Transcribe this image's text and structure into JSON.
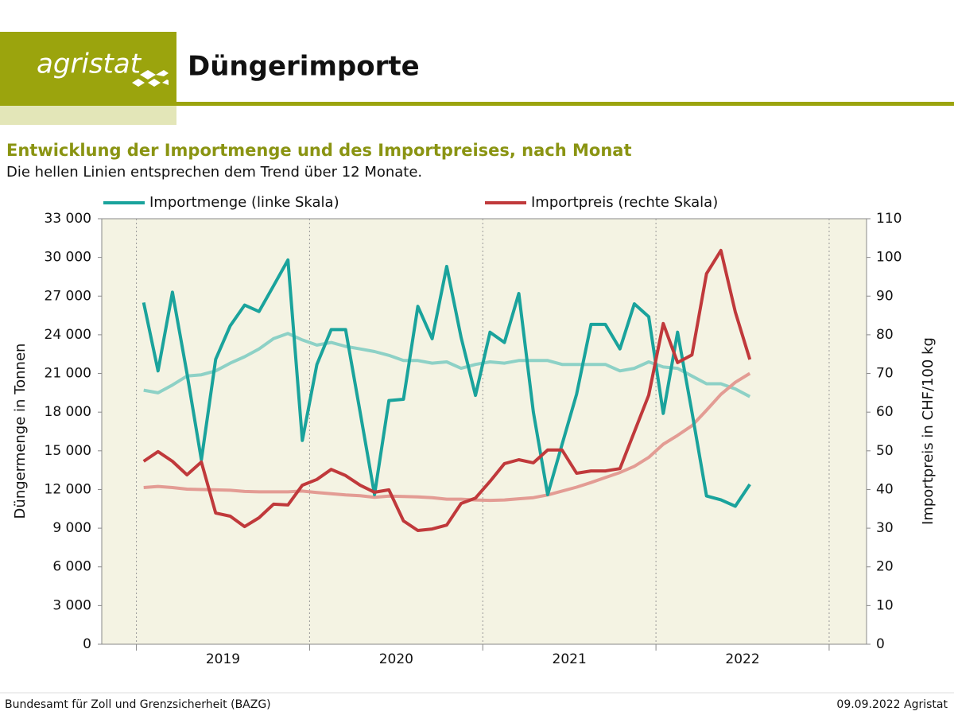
{
  "header": {
    "logo": "agristat",
    "title": "Düngerimporte"
  },
  "footer": {
    "source": "Bundesamt für Zoll und Grenzsicherheit (BAZG)",
    "date": "09.09.2022 Agristat"
  },
  "chart_data": {
    "type": "line",
    "title": "Entwicklung der Importmenge und des Importpreises, nach Monat",
    "subtitle": "Die hellen Linien entsprechen dem Trend über 12 Monate.",
    "ylabel": "Düngermenge in Tonnen",
    "y2label": "Importpreis  in CHF/100 kg",
    "x": [
      2019.042,
      2019.125,
      2019.208,
      2019.292,
      2019.375,
      2019.458,
      2019.542,
      2019.625,
      2019.708,
      2019.792,
      2019.875,
      2019.958,
      2020.042,
      2020.125,
      2020.208,
      2020.292,
      2020.375,
      2020.458,
      2020.542,
      2020.625,
      2020.708,
      2020.792,
      2020.875,
      2020.958,
      2021.042,
      2021.125,
      2021.208,
      2021.292,
      2021.375,
      2021.458,
      2021.542,
      2021.625,
      2021.708,
      2021.792,
      2021.875,
      2021.958,
      2022.042,
      2022.125,
      2022.208,
      2022.292,
      2022.375,
      2022.458,
      2022.542
    ],
    "xlim": [
      2018.8,
      2023.216
    ],
    "xticks": [
      {
        "value": 2019.5,
        "label": "2019"
      },
      {
        "value": 2020.5,
        "label": "2020"
      },
      {
        "value": 2021.5,
        "label": "2021"
      },
      {
        "value": 2022.5,
        "label": "2022"
      }
    ],
    "xgrid": [
      2019,
      2020,
      2021,
      2022,
      2023
    ],
    "ylim": [
      0,
      33000
    ],
    "yticks": [
      0,
      {
        "value": 3000,
        "label": "3 000"
      },
      {
        "value": 6000,
        "label": "6 000"
      },
      {
        "value": 9000,
        "label": "9 000"
      },
      {
        "value": 12000,
        "label": "12 000"
      },
      {
        "value": 15000,
        "label": "15 000"
      },
      {
        "value": 18000,
        "label": "18 000"
      },
      {
        "value": 21000,
        "label": "21 000"
      },
      {
        "value": 24000,
        "label": "24 000"
      },
      {
        "value": 27000,
        "label": "27 000"
      },
      {
        "value": 30000,
        "label": "30 000"
      },
      {
        "value": 33000,
        "label": "33 000"
      }
    ],
    "y2lim": [
      0,
      110
    ],
    "y2ticks": [
      0,
      10,
      20,
      30,
      40,
      50,
      60,
      70,
      80,
      90,
      100,
      110
    ],
    "legend": "top",
    "background": "#f4f3e3",
    "series": [
      {
        "name": "Importmenge (linke Skala)",
        "color": "#1aa39c",
        "values": [
          26500,
          21200,
          27300,
          21000,
          14300,
          22100,
          24700,
          26300,
          25800,
          27800,
          29800,
          15800,
          21700,
          24400,
          24400,
          18000,
          11600,
          18900,
          19000,
          26200,
          23700,
          29300,
          23800,
          19300,
          24200,
          23400,
          27200,
          18000,
          11600,
          15500,
          19400,
          24800,
          24800,
          22900,
          26400,
          25400,
          17900,
          24200,
          18000,
          11500,
          11200,
          10700,
          12400
        ],
        "trend": {
          "color": "#8dd1c6",
          "values": [
            19700,
            19500,
            20100,
            20800,
            20900,
            21200,
            21800,
            22300,
            22900,
            23700,
            24100,
            23600,
            23200,
            23400,
            23100,
            22900,
            22700,
            22400,
            22000,
            22000,
            21800,
            21900,
            21400,
            21700,
            21900,
            21800,
            22000,
            22000,
            22000,
            21700,
            21700,
            21700,
            21700,
            21200,
            21400,
            21900,
            21500,
            21400,
            20800,
            20200,
            20200,
            19800,
            19200
          ]
        }
      },
      {
        "name": "Importpreis (rechte Skala)",
        "color": "#c0393b",
        "axis": "y2",
        "values": [
          47.3,
          49.8,
          47.3,
          43.8,
          47.1,
          33.9,
          33.1,
          30.4,
          32.7,
          36.2,
          36,
          41.1,
          42.6,
          45.2,
          43.6,
          41.1,
          39.3,
          39.9,
          31.9,
          29.4,
          29.8,
          30.8,
          36.4,
          37.8,
          42.1,
          46.7,
          47.7,
          46.9,
          50.2,
          50.2,
          44.2,
          44.8,
          44.8,
          45.4,
          54.9,
          64.4,
          82.9,
          72.8,
          74.8,
          95.8,
          101.8,
          85.9,
          73.6
        ],
        "trend": {
          "color": "#e39c94",
          "values": [
            40.5,
            40.8,
            40.5,
            40.1,
            40,
            39.9,
            39.8,
            39.5,
            39.4,
            39.4,
            39.4,
            39.6,
            39.2,
            38.9,
            38.6,
            38.4,
            38,
            38.3,
            38.2,
            38.1,
            37.9,
            37.5,
            37.5,
            37.3,
            37.2,
            37.3,
            37.6,
            37.9,
            38.6,
            39.6,
            40.6,
            41.8,
            43.1,
            44.4,
            46,
            48.3,
            51.7,
            54,
            56.5,
            60.5,
            64.6,
            67.7,
            70
          ]
        }
      }
    ]
  }
}
